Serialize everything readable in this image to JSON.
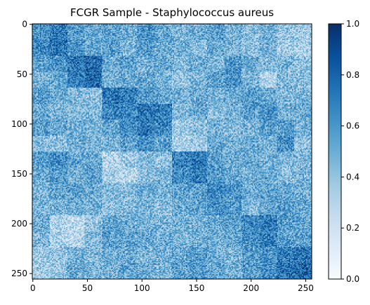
{
  "chart_data": {
    "type": "heatmap",
    "title": "FCGR Sample - Staphylococcus aureus",
    "xlabel": "",
    "ylabel": "",
    "grid_size": 256,
    "xlim": [
      0,
      256
    ],
    "ylim": [
      256,
      0
    ],
    "x_ticks": [
      0,
      50,
      100,
      150,
      200,
      250
    ],
    "y_ticks": [
      0,
      50,
      100,
      150,
      200,
      250
    ],
    "x_tick_labels": [
      "0",
      "50",
      "100",
      "150",
      "200",
      "250"
    ],
    "y_tick_labels": [
      "0",
      "50",
      "100",
      "150",
      "200",
      "250"
    ],
    "value_range": [
      0.0,
      1.0
    ],
    "colormap": "Blues",
    "colormap_stops": [
      "#f7fbff",
      "#deebf7",
      "#c6dbef",
      "#9ecae1",
      "#6baed6",
      "#4292c6",
      "#2171b5",
      "#08519c",
      "#08306b"
    ],
    "colorbar": {
      "ticks": [
        0.0,
        0.2,
        0.4,
        0.6,
        0.8,
        1.0
      ],
      "tick_labels": [
        "0.0",
        "0.2",
        "0.4",
        "0.6",
        "0.8",
        "1.0"
      ]
    },
    "block_grid_16": [
      [
        0.62,
        0.7,
        0.58,
        0.5,
        0.55,
        0.48,
        0.6,
        0.52,
        0.45,
        0.5,
        0.56,
        0.48,
        0.42,
        0.5,
        0.38,
        0.35
      ],
      [
        0.66,
        0.74,
        0.6,
        0.52,
        0.58,
        0.45,
        0.56,
        0.5,
        0.48,
        0.42,
        0.52,
        0.46,
        0.4,
        0.48,
        0.35,
        0.32
      ],
      [
        0.55,
        0.6,
        0.72,
        0.78,
        0.5,
        0.55,
        0.48,
        0.52,
        0.44,
        0.5,
        0.46,
        0.58,
        0.5,
        0.44,
        0.46,
        0.4
      ],
      [
        0.48,
        0.52,
        0.7,
        0.76,
        0.46,
        0.5,
        0.52,
        0.46,
        0.4,
        0.46,
        0.55,
        0.62,
        0.48,
        0.3,
        0.44,
        0.42
      ],
      [
        0.56,
        0.5,
        0.45,
        0.4,
        0.72,
        0.7,
        0.58,
        0.52,
        0.48,
        0.52,
        0.46,
        0.5,
        0.58,
        0.52,
        0.44,
        0.46
      ],
      [
        0.52,
        0.46,
        0.42,
        0.44,
        0.68,
        0.66,
        0.74,
        0.7,
        0.44,
        0.5,
        0.42,
        0.48,
        0.56,
        0.62,
        0.48,
        0.5
      ],
      [
        0.58,
        0.5,
        0.48,
        0.46,
        0.52,
        0.62,
        0.72,
        0.66,
        0.35,
        0.4,
        0.48,
        0.44,
        0.46,
        0.58,
        0.56,
        0.48
      ],
      [
        0.42,
        0.4,
        0.5,
        0.46,
        0.48,
        0.54,
        0.62,
        0.56,
        0.3,
        0.36,
        0.52,
        0.48,
        0.5,
        0.46,
        0.62,
        0.4
      ],
      [
        0.56,
        0.62,
        0.52,
        0.5,
        0.3,
        0.36,
        0.44,
        0.4,
        0.68,
        0.72,
        0.56,
        0.5,
        0.52,
        0.48,
        0.46,
        0.44
      ],
      [
        0.5,
        0.56,
        0.48,
        0.54,
        0.32,
        0.3,
        0.4,
        0.46,
        0.64,
        0.7,
        0.58,
        0.52,
        0.48,
        0.5,
        0.42,
        0.46
      ],
      [
        0.48,
        0.52,
        0.56,
        0.5,
        0.44,
        0.42,
        0.5,
        0.48,
        0.54,
        0.56,
        0.66,
        0.6,
        0.5,
        0.54,
        0.52,
        0.48
      ],
      [
        0.44,
        0.46,
        0.5,
        0.48,
        0.4,
        0.44,
        0.48,
        0.42,
        0.5,
        0.54,
        0.62,
        0.58,
        0.46,
        0.52,
        0.56,
        0.5
      ],
      [
        0.5,
        0.3,
        0.26,
        0.4,
        0.52,
        0.5,
        0.48,
        0.46,
        0.48,
        0.46,
        0.52,
        0.56,
        0.64,
        0.7,
        0.58,
        0.52
      ],
      [
        0.46,
        0.32,
        0.28,
        0.44,
        0.56,
        0.54,
        0.52,
        0.5,
        0.46,
        0.5,
        0.48,
        0.52,
        0.62,
        0.68,
        0.56,
        0.54
      ],
      [
        0.36,
        0.4,
        0.48,
        0.44,
        0.5,
        0.52,
        0.46,
        0.48,
        0.52,
        0.56,
        0.5,
        0.46,
        0.56,
        0.6,
        0.7,
        0.72
      ],
      [
        0.34,
        0.38,
        0.5,
        0.46,
        0.48,
        0.54,
        0.5,
        0.46,
        0.54,
        0.58,
        0.52,
        0.48,
        0.58,
        0.62,
        0.74,
        0.78
      ]
    ]
  }
}
